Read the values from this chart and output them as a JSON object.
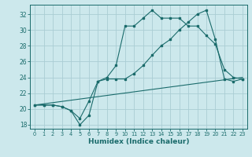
{
  "title": "",
  "xlabel": "Humidex (Indice chaleur)",
  "bg_color": "#cce8ec",
  "grid_color": "#aacdd4",
  "line_color": "#1a6b6b",
  "xlim": [
    -0.5,
    23.5
  ],
  "ylim": [
    17.5,
    33.2
  ],
  "yticks": [
    18,
    20,
    22,
    24,
    26,
    28,
    30,
    32
  ],
  "xticks": [
    0,
    1,
    2,
    3,
    4,
    5,
    6,
    7,
    8,
    9,
    10,
    11,
    12,
    13,
    14,
    15,
    16,
    17,
    18,
    19,
    20,
    21,
    22,
    23
  ],
  "series1_x": [
    0,
    1,
    2,
    3,
    4,
    5,
    6,
    7,
    8,
    9,
    10,
    11,
    12,
    13,
    14,
    15,
    16,
    17,
    18,
    19,
    20,
    21,
    22,
    23
  ],
  "series1_y": [
    20.5,
    20.5,
    20.5,
    20.3,
    19.8,
    18.0,
    19.2,
    23.5,
    24.0,
    25.5,
    30.5,
    30.5,
    31.5,
    32.5,
    31.5,
    31.5,
    31.5,
    30.5,
    30.5,
    29.3,
    28.2,
    25.0,
    24.0,
    23.8
  ],
  "series2_x": [
    0,
    1,
    2,
    3,
    4,
    5,
    6,
    7,
    8,
    9,
    10,
    11,
    12,
    13,
    14,
    15,
    16,
    17,
    18,
    19,
    20,
    21,
    22,
    23
  ],
  "series2_y": [
    20.5,
    20.5,
    20.5,
    20.3,
    19.8,
    18.8,
    21.0,
    23.5,
    23.8,
    23.8,
    23.8,
    24.5,
    25.5,
    26.8,
    28.0,
    28.8,
    30.0,
    31.0,
    32.0,
    32.5,
    28.8,
    23.8,
    23.5,
    23.8
  ],
  "series3_x": [
    0,
    23
  ],
  "series3_y": [
    20.5,
    24.0
  ]
}
